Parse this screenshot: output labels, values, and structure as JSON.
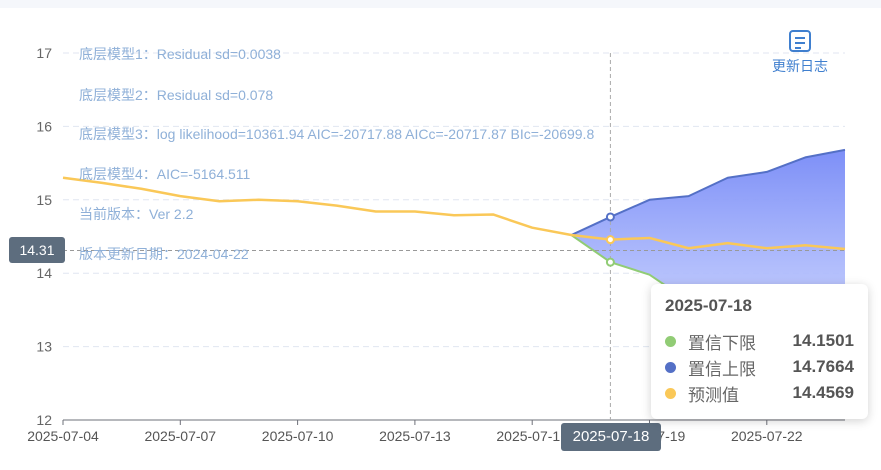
{
  "chart_data": {
    "type": "area",
    "x": [
      "2025-07-04",
      "2025-07-05",
      "2025-07-06",
      "2025-07-07",
      "2025-07-08",
      "2025-07-09",
      "2025-07-10",
      "2025-07-11",
      "2025-07-12",
      "2025-07-13",
      "2025-07-14",
      "2025-07-15",
      "2025-07-16",
      "2025-07-17",
      "2025-07-18",
      "2025-07-19",
      "2025-07-20",
      "2025-07-21",
      "2025-07-22",
      "2025-07-23",
      "2025-07-24"
    ],
    "xticks": [
      "2025-07-04",
      "2025-07-07",
      "2025-07-10",
      "2025-07-13",
      "2025-07-16",
      "2025-07-19",
      "2025-07-22"
    ],
    "ylim": [
      12,
      17
    ],
    "yticks": [
      12,
      13,
      14,
      15,
      16,
      17
    ],
    "grid": true,
    "series": [
      {
        "name": "置信下限",
        "color": "#91cc75",
        "values": [
          null,
          null,
          null,
          null,
          null,
          null,
          null,
          null,
          null,
          null,
          null,
          null,
          null,
          14.52,
          14.1501,
          13.98,
          13.62,
          13.35,
          13.22,
          13.15,
          13.0
        ]
      },
      {
        "name": "置信上限",
        "color": "#5470c6",
        "values": [
          null,
          null,
          null,
          null,
          null,
          null,
          null,
          null,
          null,
          null,
          null,
          null,
          null,
          14.52,
          14.7664,
          15.0,
          15.05,
          15.3,
          15.38,
          15.58,
          15.68
        ]
      },
      {
        "name": "预测值",
        "color": "#fac858",
        "values": [
          15.3,
          15.23,
          15.15,
          15.05,
          14.98,
          15.0,
          14.98,
          14.92,
          14.84,
          14.84,
          14.79,
          14.8,
          14.62,
          14.52,
          14.4569,
          14.48,
          14.34,
          14.41,
          14.34,
          14.38,
          14.33
        ]
      }
    ],
    "annotations": [
      "底层模型1：Residual sd=0.0038",
      "底层模型2：Residual sd=0.078",
      "底层模型3：log likelihood=10361.94 AIC=-20717.88 AICc=-20717.87 BIc=-20699.8",
      "底层模型4：AIC=-5164.511",
      "当前版本：Ver 2.2",
      "版本更新日期：2024-04-22"
    ],
    "crosshair": {
      "x": "2025-07-18",
      "y": 14.31,
      "x_label": "2025-07-18",
      "y_label": "14.31"
    },
    "tooltip": {
      "date": "2025-07-18",
      "rows": [
        {
          "name": "置信下限",
          "value": "14.1501",
          "color": "#91cc75"
        },
        {
          "name": "置信上限",
          "value": "14.7664",
          "color": "#5470c6"
        },
        {
          "name": "预测值",
          "value": "14.4569",
          "color": "#fac858"
        }
      ]
    }
  },
  "changelog": {
    "label": "更新日志",
    "icon": "document-list-icon"
  }
}
